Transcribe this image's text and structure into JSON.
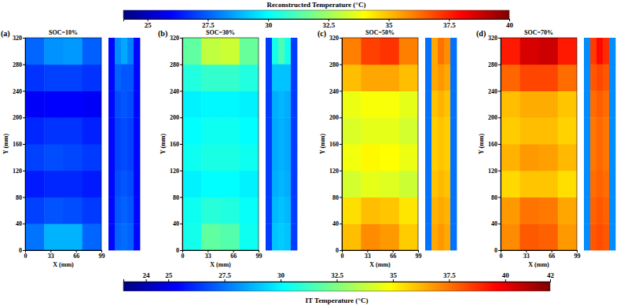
{
  "chart_data": [
    {
      "type": "heatmap",
      "panel": "(a)",
      "title": "SOC=10%",
      "xlabel": "X (mm)",
      "ylabel": "Y (mm)",
      "x": [
        12.375,
        37.125,
        61.875,
        86.625
      ],
      "y": [
        20,
        60,
        100,
        140,
        180,
        220,
        260,
        300
      ],
      "xlim": [
        0,
        99
      ],
      "ylim": [
        0,
        320
      ],
      "xticks": [
        0,
        33,
        66,
        99
      ],
      "yticks": [
        0,
        40,
        80,
        120,
        160,
        200,
        240,
        280,
        320
      ],
      "cells": [
        [
          27.8,
          28.8,
          28.8,
          27.6
        ],
        [
          27.0,
          27.3,
          27.2,
          26.9
        ],
        [
          26.4,
          26.6,
          26.6,
          26.4
        ],
        [
          27.0,
          27.2,
          27.1,
          26.9
        ],
        [
          26.6,
          26.8,
          26.8,
          26.5
        ],
        [
          25.9,
          26.0,
          26.0,
          25.9
        ],
        [
          26.8,
          27.0,
          27.0,
          26.8
        ],
        [
          27.6,
          28.3,
          28.4,
          27.5
        ]
      ],
      "ir_cells": [
        [
          25.5,
          28.0,
          28.5,
          27.8,
          25.5
        ],
        [
          25.5,
          27.2,
          27.0,
          27.0,
          25.5
        ],
        [
          25.5,
          26.8,
          27.0,
          26.8,
          25.5
        ],
        [
          25.5,
          26.6,
          26.8,
          26.6,
          25.5
        ],
        [
          25.5,
          26.6,
          26.8,
          26.6,
          25.5
        ],
        [
          25.5,
          26.8,
          27.0,
          26.8,
          25.5
        ],
        [
          25.5,
          27.0,
          27.2,
          27.0,
          25.5
        ],
        [
          25.5,
          27.2,
          27.4,
          27.2,
          25.5
        ]
      ]
    },
    {
      "type": "heatmap",
      "panel": "(b)",
      "title": "SOC=30%",
      "xlabel": "X (mm)",
      "ylabel": "Y (mm)",
      "x": [
        12.375,
        37.125,
        61.875,
        86.625
      ],
      "y": [
        20,
        60,
        100,
        140,
        180,
        220,
        260,
        300
      ],
      "xlim": [
        0,
        99
      ],
      "ylim": [
        0,
        320
      ],
      "xticks": [
        0,
        33,
        66,
        99
      ],
      "yticks": [
        0,
        40,
        80,
        120,
        160,
        200,
        240,
        280,
        320
      ],
      "cells": [
        [
          30.3,
          31.5,
          31.3,
          30.2
        ],
        [
          30.2,
          30.6,
          30.5,
          30.1
        ],
        [
          29.8,
          30.0,
          30.0,
          29.8
        ],
        [
          30.2,
          30.4,
          30.4,
          30.2
        ],
        [
          30.0,
          30.2,
          30.2,
          30.0
        ],
        [
          29.8,
          29.9,
          29.9,
          29.8
        ],
        [
          30.5,
          30.8,
          30.8,
          30.5
        ],
        [
          31.5,
          33.0,
          33.2,
          31.6
        ]
      ],
      "ir_cells": [
        [
          26.5,
          30.5,
          31.5,
          30.5,
          26.5
        ],
        [
          26.5,
          29.0,
          29.0,
          29.0,
          26.5
        ],
        [
          26.5,
          28.6,
          28.8,
          28.6,
          26.5
        ],
        [
          26.5,
          28.5,
          28.7,
          28.5,
          26.5
        ],
        [
          26.5,
          28.5,
          28.7,
          28.5,
          26.5
        ],
        [
          26.5,
          28.6,
          28.8,
          28.6,
          26.5
        ],
        [
          26.5,
          28.8,
          29.0,
          28.8,
          26.5
        ],
        [
          26.5,
          29.0,
          29.2,
          29.0,
          26.5
        ]
      ]
    },
    {
      "type": "heatmap",
      "panel": "(c)",
      "title": "SOC=50%",
      "xlabel": "X (mm)",
      "ylabel": "Y (mm)",
      "x": [
        12.375,
        37.125,
        61.875,
        86.625
      ],
      "y": [
        20,
        60,
        100,
        140,
        180,
        220,
        260,
        300
      ],
      "xlim": [
        0,
        99
      ],
      "ylim": [
        0,
        320
      ],
      "xticks": [
        0,
        33,
        66,
        99
      ],
      "yticks": [
        0,
        40,
        80,
        120,
        160,
        200,
        240,
        280,
        320
      ],
      "cells": [
        [
          35.0,
          35.8,
          35.6,
          34.8
        ],
        [
          34.5,
          35.0,
          34.9,
          34.4
        ],
        [
          33.3,
          33.6,
          33.5,
          33.2
        ],
        [
          33.8,
          34.1,
          34.0,
          33.7
        ],
        [
          33.4,
          33.6,
          33.6,
          33.3
        ],
        [
          33.7,
          33.9,
          33.9,
          33.6
        ],
        [
          35.0,
          35.4,
          35.4,
          35.0
        ],
        [
          36.0,
          37.0,
          37.2,
          36.0
        ]
      ],
      "ir_cells": [
        [
          27.5,
          36.5,
          37.5,
          37.0,
          27.5
        ],
        [
          27.5,
          36.5,
          36.8,
          36.5,
          27.5
        ],
        [
          27.5,
          36.0,
          36.3,
          36.0,
          27.5
        ],
        [
          27.5,
          35.8,
          36.0,
          35.8,
          27.5
        ],
        [
          27.5,
          35.8,
          36.0,
          35.8,
          27.5
        ],
        [
          27.5,
          36.0,
          36.2,
          36.0,
          27.5
        ],
        [
          27.5,
          36.3,
          36.5,
          36.3,
          27.5
        ],
        [
          27.5,
          36.5,
          36.8,
          36.5,
          27.5
        ]
      ]
    },
    {
      "type": "heatmap",
      "panel": "(d)",
      "title": "SOC=70%",
      "xlabel": "X (mm)",
      "ylabel": "Y (mm)",
      "x": [
        12.375,
        37.125,
        61.875,
        86.625
      ],
      "y": [
        20,
        60,
        100,
        140,
        180,
        220,
        260,
        300
      ],
      "xlim": [
        0,
        99
      ],
      "ylim": [
        0,
        320
      ],
      "xticks": [
        0,
        33,
        66,
        99
      ],
      "yticks": [
        0,
        40,
        80,
        120,
        160,
        200,
        240,
        280,
        320
      ],
      "cells": [
        [
          35.8,
          36.6,
          36.5,
          35.6
        ],
        [
          35.6,
          36.2,
          36.1,
          35.4
        ],
        [
          34.6,
          34.9,
          34.9,
          34.5
        ],
        [
          35.2,
          35.6,
          35.5,
          35.1
        ],
        [
          34.8,
          35.0,
          35.0,
          34.7
        ],
        [
          35.0,
          35.3,
          35.3,
          34.9
        ],
        [
          36.4,
          36.9,
          36.9,
          36.3
        ],
        [
          37.6,
          38.6,
          38.8,
          37.6
        ]
      ],
      "ir_cells": [
        [
          28.0,
          38.5,
          39.5,
          38.8,
          28.0
        ],
        [
          28.0,
          38.0,
          38.3,
          38.0,
          28.0
        ],
        [
          28.0,
          37.6,
          37.9,
          37.6,
          28.0
        ],
        [
          28.0,
          37.4,
          37.7,
          37.4,
          28.0
        ],
        [
          28.0,
          37.4,
          37.7,
          37.4,
          28.0
        ],
        [
          28.0,
          37.6,
          37.8,
          37.6,
          28.0
        ],
        [
          28.0,
          37.8,
          38.0,
          37.8,
          28.0
        ],
        [
          28.0,
          38.0,
          38.2,
          38.0,
          28.0
        ]
      ]
    },
    {
      "type": "colorbar",
      "title": "Reconstructed Temperature (°C)",
      "range": [
        24,
        40
      ],
      "ticks": [
        25,
        27.5,
        30,
        32.5,
        35,
        37.5,
        40
      ]
    },
    {
      "type": "colorbar",
      "title": "IT Temperature (°C)",
      "range": [
        23,
        42
      ],
      "ticks": [
        24,
        25,
        27.5,
        30,
        32.5,
        35,
        37.5,
        40,
        42
      ]
    }
  ]
}
